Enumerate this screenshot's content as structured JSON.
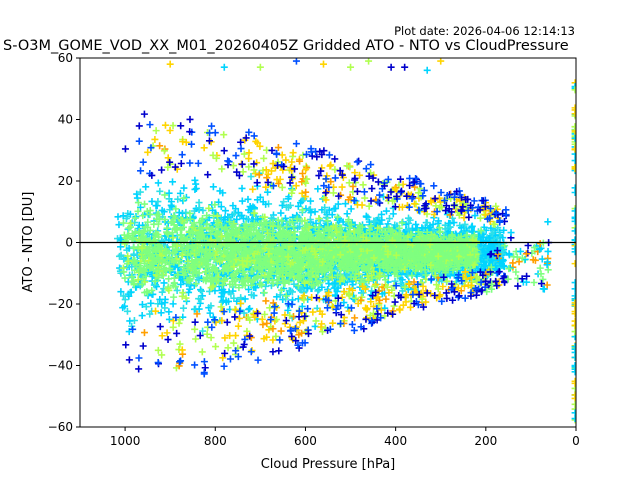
{
  "chart_data": {
    "type": "scatter",
    "plot_date": "Plot date: 2026-04-06 12:14:13",
    "title": "S-O3M_GOME_VOD_XX_M01_20260405Z Gridded ATO - NTO vs CloudPressure",
    "xlabel": "Cloud Pressure [hPa]",
    "ylabel": "ATO - NTO [DU]",
    "xlim": [
      1100,
      0
    ],
    "ylim": [
      -60,
      60
    ],
    "x_ticks": [
      "1000",
      "800",
      "600",
      "400",
      "200",
      "0"
    ],
    "x_tick_values": [
      1000,
      800,
      600,
      400,
      200,
      0
    ],
    "y_ticks": [
      "−60",
      "−40",
      "−20",
      "0",
      "20",
      "40",
      "60"
    ],
    "y_tick_values": [
      -60,
      -40,
      -20,
      0,
      20,
      40,
      60
    ],
    "reference_line_y": 0,
    "marker": "+",
    "colors": [
      "#7fff7f",
      "#00d4ff",
      "#2fe0e8",
      "#b0ff50",
      "#ffd400",
      "#0050ff",
      "#0000cc",
      "#ff9f00"
    ],
    "envelope_description": "dense cloud of points from ~1000 to ~150 hPa; spread roughly -45..+40 DU near 1000 hPa narrowing toward 150 hPa; vertical column of points at 0 hPa",
    "series": [
      {
        "name": "green core",
        "x_range": [
          1010,
          230
        ],
        "y_center": -3,
        "y_spread": 14,
        "color": "#7fff7f"
      },
      {
        "name": "cyan envelope",
        "x_range": [
          1020,
          170
        ],
        "y_center": -3,
        "y_spread": 22,
        "color": "#00d4ff"
      },
      {
        "name": "outliers yellow",
        "x_range": [
          960,
          150
        ],
        "y_center": 0,
        "y_spread": 35,
        "color": "#ffd400"
      },
      {
        "name": "outliers blue",
        "x_range": [
          990,
          150
        ],
        "y_center": 0,
        "y_spread": 38,
        "color": "#0000cc"
      },
      {
        "name": "zero-pressure column",
        "x_value": 0,
        "y_range": [
          -60,
          52
        ],
        "color": "#00d4ff"
      }
    ]
  }
}
